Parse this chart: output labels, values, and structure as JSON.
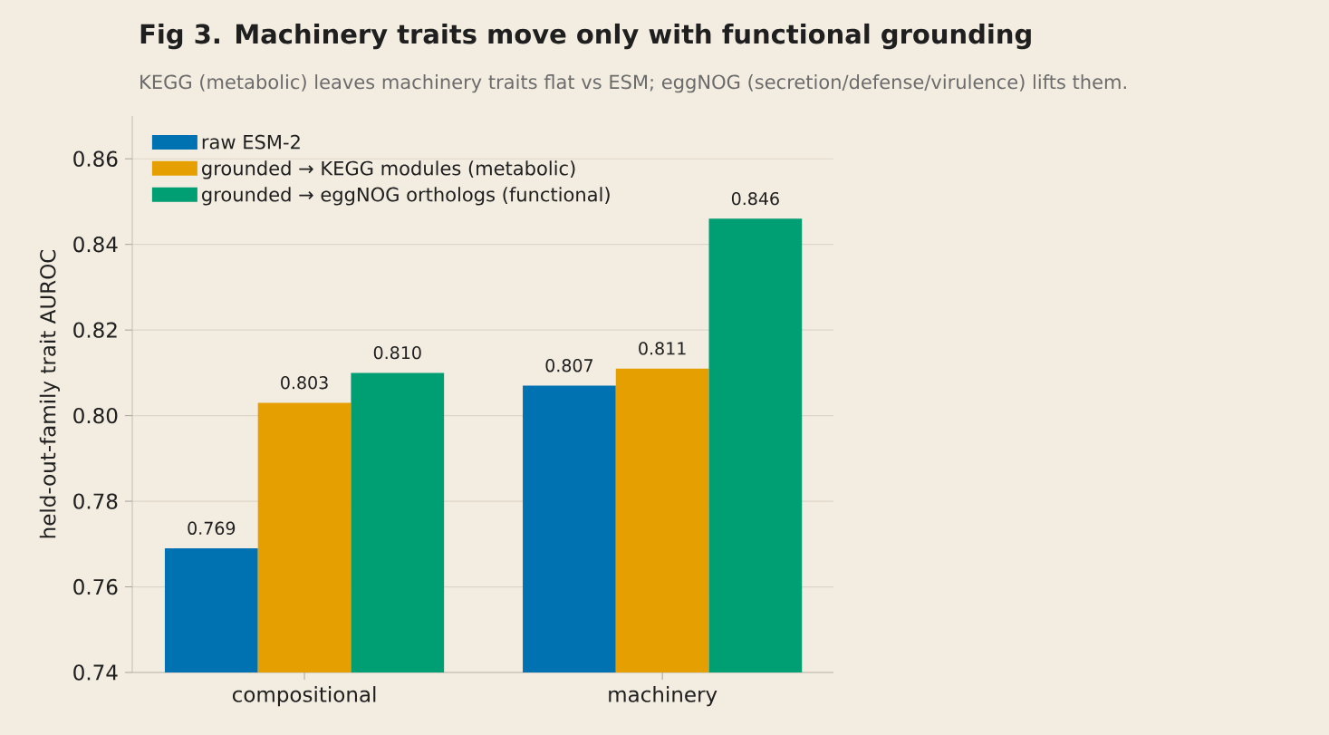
{
  "chart_data": {
    "type": "bar",
    "title": "Fig 3. Machinery traits move only with functional grounding",
    "subtitle": "KEGG (metabolic) leaves machinery traits flat vs ESM; eggNOG (secretion/defense/virulence) lifts them.",
    "ylabel": "held-out-family trait AUROC",
    "categories": [
      "compositional",
      "machinery"
    ],
    "series": [
      {
        "name": "raw ESM-2",
        "color": "#0072b2",
        "values": [
          0.769,
          0.807
        ],
        "value_labels": [
          "0.769",
          "0.807"
        ]
      },
      {
        "name": "grounded → KEGG modules (metabolic)",
        "color": "#e69f00",
        "values": [
          0.803,
          0.811
        ],
        "value_labels": [
          "0.803",
          "0.811"
        ]
      },
      {
        "name": "grounded → eggNOG orthologs (functional)",
        "color": "#009e73",
        "values": [
          0.81,
          0.846
        ],
        "value_labels": [
          "0.810",
          "0.846"
        ]
      }
    ],
    "ylim": [
      0.74,
      0.87
    ],
    "yticks": [
      0.74,
      0.76,
      0.78,
      {
        "value": 0.8,
        "label": "0.80"
      },
      0.82,
      0.84,
      0.86
    ],
    "grid": "y",
    "legend": "top left"
  }
}
